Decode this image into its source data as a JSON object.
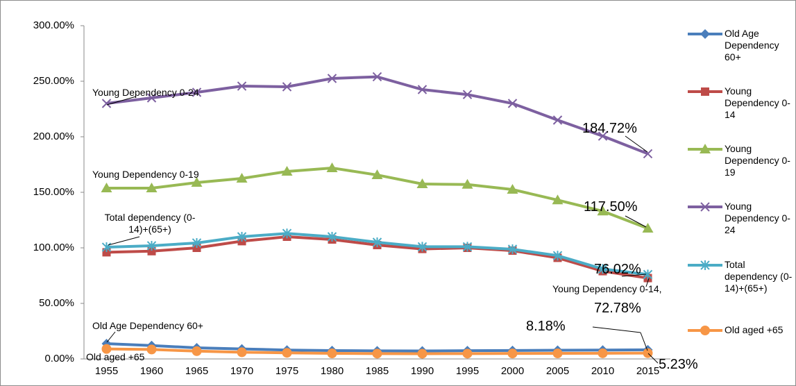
{
  "chart_data": {
    "type": "line",
    "categories": [
      "1955",
      "1960",
      "1965",
      "1970",
      "1975",
      "1980",
      "1985",
      "1990",
      "1995",
      "2000",
      "2005",
      "2010",
      "2015"
    ],
    "ylim": [
      0,
      300
    ],
    "yticks": [
      {
        "value": 0,
        "label": "0.00%"
      },
      {
        "value": 50,
        "label": "50.00%"
      },
      {
        "value": 100,
        "label": "100.00%"
      },
      {
        "value": 150,
        "label": "150.00%"
      },
      {
        "value": 200,
        "label": "200.00%"
      },
      {
        "value": 250,
        "label": "250.00%"
      },
      {
        "value": 300,
        "label": "300.00%"
      }
    ],
    "grid": false,
    "legend": "right",
    "series": [
      {
        "name": "Old Age Dependency 60+",
        "color": "#4a7ebb",
        "marker": "diamond",
        "values": [
          13.75,
          12,
          10,
          9,
          8,
          7.5,
          7.3,
          7.2,
          7.4,
          7.6,
          7.8,
          8,
          8.18
        ],
        "value_labels": [
          null,
          null,
          null,
          null,
          null,
          null,
          null,
          null,
          null,
          null,
          null,
          null,
          "8.18%"
        ]
      },
      {
        "name": "Young Dependency 0-14",
        "color": "#be4b48",
        "marker": "square",
        "values": [
          96,
          97,
          100,
          106,
          110,
          107.5,
          102.5,
          99,
          100,
          97.5,
          91,
          79,
          72.78
        ],
        "value_labels": [
          null,
          null,
          null,
          null,
          null,
          null,
          null,
          null,
          null,
          null,
          null,
          null,
          "72.78%"
        ]
      },
      {
        "name": "Young Dependency 0-19",
        "color": "#98b954",
        "marker": "triangle",
        "values": [
          153.75,
          153.75,
          158.75,
          162.5,
          168.75,
          171.9,
          165.6,
          157.5,
          157,
          152.5,
          143,
          133,
          117.5
        ],
        "value_labels": [
          null,
          null,
          null,
          null,
          null,
          null,
          null,
          null,
          null,
          null,
          null,
          null,
          "117.50%"
        ]
      },
      {
        "name": "Young Dependency 0-24",
        "color": "#7d60a0",
        "marker": "x",
        "values": [
          230,
          235,
          240,
          245.6,
          245,
          252.5,
          254,
          242.5,
          238,
          230,
          215,
          200.6,
          184.72
        ],
        "value_labels": [
          null,
          null,
          null,
          null,
          null,
          null,
          null,
          null,
          null,
          null,
          null,
          null,
          "184.72%"
        ]
      },
      {
        "name": "Total dependency (0-14)+(65+)",
        "color": "#4bacc6",
        "marker": "star",
        "values": [
          100.6,
          101.9,
          104.4,
          110,
          113,
          110,
          105,
          101,
          101,
          98.75,
          93,
          81,
          76.02
        ],
        "value_labels": [
          null,
          null,
          null,
          null,
          null,
          null,
          null,
          null,
          null,
          null,
          null,
          null,
          "76.02%"
        ]
      },
      {
        "name": "Old aged +65",
        "color": "#f79646",
        "marker": "circle",
        "values": [
          9,
          8.5,
          7,
          6,
          5.5,
          5,
          4.8,
          4.7,
          4.8,
          4.9,
          5,
          5.1,
          5.23
        ],
        "value_labels": [
          null,
          null,
          null,
          null,
          null,
          null,
          null,
          null,
          null,
          null,
          null,
          null,
          "5.23%"
        ]
      }
    ],
    "annotations": [
      "Young Dependency 0-24",
      "Young Dependency 0-19",
      "Total dependency (0-14)+(65+)",
      "Old Age Dependency 60+",
      "Old aged +65",
      "Young Dependency 0-14,"
    ]
  }
}
